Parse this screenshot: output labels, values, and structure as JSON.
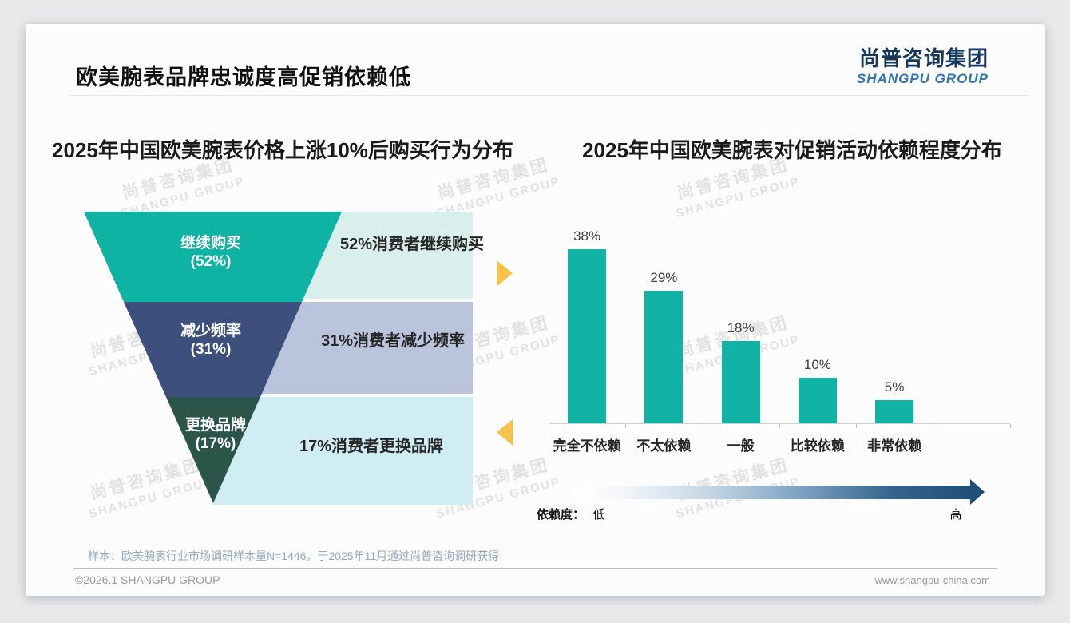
{
  "header": {
    "title": "欧美腕表品牌忠诚度高促销依赖低"
  },
  "logo": {
    "cn": "尚普咨询集团",
    "en": "SHANGPU GROUP"
  },
  "watermark": {
    "cn": "尚普咨询集团",
    "en": "SHANGPU GROUP"
  },
  "chart_data": [
    {
      "type": "funnel",
      "title": "2025年中国欧美腕表价格上涨10%后购买行为分布",
      "categories": [
        "继续购买",
        "减少频率",
        "更换品牌"
      ],
      "values": [
        52,
        31,
        17
      ],
      "unit": "%",
      "value_labels": [
        "(52%)",
        "(31%)",
        "(17%)"
      ],
      "annotations": [
        "52%消费者继续购买",
        "31%消费者减少频率",
        "17%消费者更换品牌"
      ],
      "colors": [
        "#0FB3A3",
        "#3C4F7D",
        "#2B5548"
      ],
      "panel_colors": [
        "#D9EFEB",
        "#BAC4DD",
        "#D0EDF4"
      ],
      "arrow_color": "#F6C24A"
    },
    {
      "type": "bar",
      "title": "2025年中国欧美腕表对促销活动依赖程度分布",
      "categories": [
        "完全不依赖",
        "不太依赖",
        "一般",
        "比较依赖",
        "非常依赖"
      ],
      "values": [
        38,
        29,
        18,
        10,
        5
      ],
      "unit": "%",
      "value_labels": [
        "38%",
        "29%",
        "18%",
        "10%",
        "5%"
      ],
      "bar_color": "#10B3A4",
      "ylim": [
        0,
        40
      ],
      "grid": false,
      "legend_position": "none",
      "axis_arrow": {
        "label": "依赖度：",
        "low": "低",
        "high": "高",
        "gradient_start": "#FFFFFF",
        "gradient_end": "#1F4E79"
      }
    }
  ],
  "source": "样本：欧美腕表行业市场调研样本量N=1446，于2025年11月通过尚普咨询调研获得",
  "footer": {
    "left": "©2026.1 SHANGPU GROUP",
    "right": "www.shangpu-china.com"
  }
}
